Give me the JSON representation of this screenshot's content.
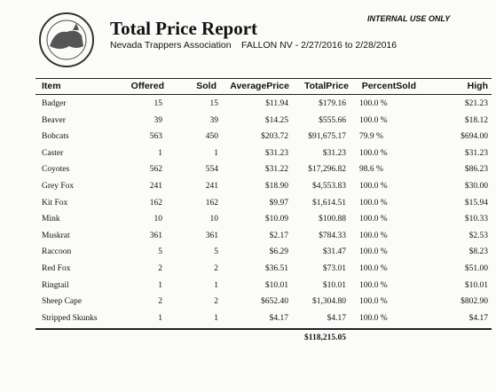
{
  "header": {
    "title": "Total Price Report",
    "subtitle": "Nevada Trappers Association",
    "range": "FALLON NV - 2/27/2016 to 2/28/2016",
    "notice": "INTERNAL USE ONLY"
  },
  "table": {
    "columns": [
      "Item",
      "Offered",
      "Sold",
      "AveragePrice",
      "TotalPrice",
      "PercentSold",
      "High"
    ],
    "rows": [
      [
        "Badger",
        "15",
        "15",
        "$11.94",
        "$179.16",
        "100.0 %",
        "$21.23"
      ],
      [
        "Beaver",
        "39",
        "39",
        "$14.25",
        "$555.66",
        "100.0 %",
        "$18.12"
      ],
      [
        "Bobcats",
        "563",
        "450",
        "$203.72",
        "$91,675.17",
        "79.9 %",
        "$694.00"
      ],
      [
        "Caster",
        "1",
        "1",
        "$31.23",
        "$31.23",
        "100.0 %",
        "$31.23"
      ],
      [
        "Coyotes",
        "562",
        "554",
        "$31.22",
        "$17,296.82",
        "98.6 %",
        "$86.23"
      ],
      [
        "Grey Fox",
        "241",
        "241",
        "$18.90",
        "$4,553.83",
        "100.0 %",
        "$30.00"
      ],
      [
        "Kit Fox",
        "162",
        "162",
        "$9.97",
        "$1,614.51",
        "100.0 %",
        "$15.94"
      ],
      [
        "Mink",
        "10",
        "10",
        "$10.09",
        "$100.88",
        "100.0 %",
        "$10.33"
      ],
      [
        "Muskrat",
        "361",
        "361",
        "$2.17",
        "$784.33",
        "100.0 %",
        "$2.53"
      ],
      [
        "Raccoon",
        "5",
        "5",
        "$6.29",
        "$31.47",
        "100.0 %",
        "$8.23"
      ],
      [
        "Red Fox",
        "2",
        "2",
        "$36.51",
        "$73.01",
        "100.0 %",
        "$51.00"
      ],
      [
        "Ringtail",
        "1",
        "1",
        "$10.01",
        "$10.01",
        "100.0 %",
        "$10.01"
      ],
      [
        "Sheep Cape",
        "2",
        "2",
        "$652.40",
        "$1,304.80",
        "100.0 %",
        "$802.90"
      ],
      [
        "Stripped Skunks",
        "1",
        "1",
        "$4.17",
        "$4.17",
        "100.0 %",
        "$4.17"
      ]
    ],
    "total": "$118,215.05"
  }
}
